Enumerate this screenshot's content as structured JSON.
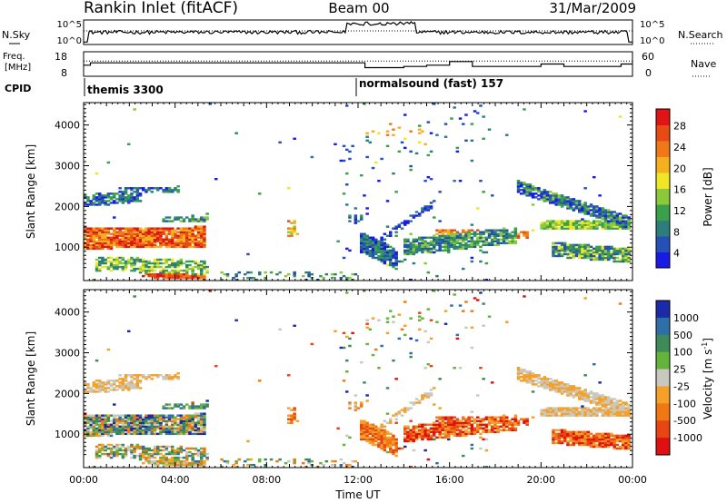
{
  "header": {
    "title": "Rankin Inlet (fitACF)",
    "beam": "Beam 00",
    "date": "31/Mar/2009"
  },
  "noise_panel": {
    "left_label": "N.Sky",
    "right_label": "N.Search",
    "ticks_left": [
      "10^5",
      "10^0"
    ],
    "ticks_right": [
      "10^5",
      "10^0"
    ]
  },
  "freq_panel": {
    "left_label_1": "Freq.",
    "left_label_2": "[MHz]",
    "right_label": "Nave",
    "ticks_left": [
      "18",
      "8"
    ],
    "ticks_right": [
      "60",
      "0"
    ]
  },
  "cpid_panel": {
    "label": "CPID",
    "modes": [
      {
        "name": "themis 3300",
        "start_hour": 0
      },
      {
        "name": "normalsound (fast) 157",
        "start_hour": 12
      }
    ]
  },
  "chart_data": [
    {
      "type": "heatmap",
      "name": "power",
      "ylabel": "Slant Range [km]",
      "ylim": [
        180,
        4550
      ],
      "yticks": [
        "1000",
        "2000",
        "3000",
        "4000"
      ],
      "x_range_hours": [
        0,
        24
      ],
      "colorbar": {
        "label": "Power [dB]",
        "tick_labels": [
          "4",
          "8",
          "12",
          "16",
          "20",
          "24",
          "28"
        ],
        "colors": [
          "#1a1ae6",
          "#2450b8",
          "#2e7d7d",
          "#3aa04a",
          "#8cc83c",
          "#f0e628",
          "#f5b020",
          "#f07818",
          "#e84a14",
          "#e01414"
        ]
      }
    },
    {
      "type": "heatmap",
      "name": "velocity",
      "ylabel": "Slant Range [km]",
      "ylim": [
        180,
        4550
      ],
      "yticks": [
        "1000",
        "2000",
        "3000",
        "4000"
      ],
      "x_range_hours": [
        0,
        24
      ],
      "xlabel": "Time UT",
      "xticks": [
        "00:00",
        "04:00",
        "08:00",
        "12:00",
        "16:00",
        "20:00",
        "00:00"
      ],
      "colorbar": {
        "label": "Velocity [m s",
        "label_sup": "-1",
        "label_end": "]",
        "tick_labels": [
          "1000",
          "500",
          "100",
          "25",
          "-25",
          "-100",
          "-500",
          "-1000"
        ],
        "colors": [
          "#1a2aa8",
          "#2f6ea6",
          "#3e8a58",
          "#64b43c",
          "#c8c8be",
          "#f5a028",
          "#f07814",
          "#e84414",
          "#e01010"
        ]
      }
    }
  ]
}
